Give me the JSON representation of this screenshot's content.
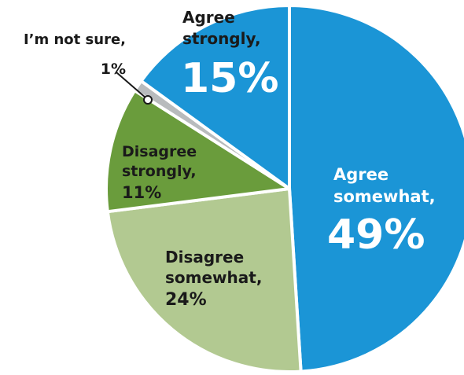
{
  "chart_data": {
    "type": "pie",
    "slices": [
      {
        "name": "Agree somewhat,",
        "value": 49,
        "value_label": "49%",
        "color": "#1b95d6",
        "label_color": "#ffffff"
      },
      {
        "name": "Disagree somewhat,",
        "value": 24,
        "value_label": "24%",
        "color": "#b2c991",
        "label_color": "#1a1a1a"
      },
      {
        "name": "Disagree strongly,",
        "value": 11,
        "value_label": "11%",
        "color": "#6a9c3c",
        "label_color": "#1a1a1a"
      },
      {
        "name": "I’m not sure,",
        "value": 1,
        "value_label": "1%",
        "color": "#b8bbbd",
        "label_color": "#1a1a1a"
      },
      {
        "name": "Agree strongly,",
        "value": 15,
        "value_label": "15%",
        "color": "#1b95d6",
        "label_color": "#ffffff"
      }
    ]
  }
}
